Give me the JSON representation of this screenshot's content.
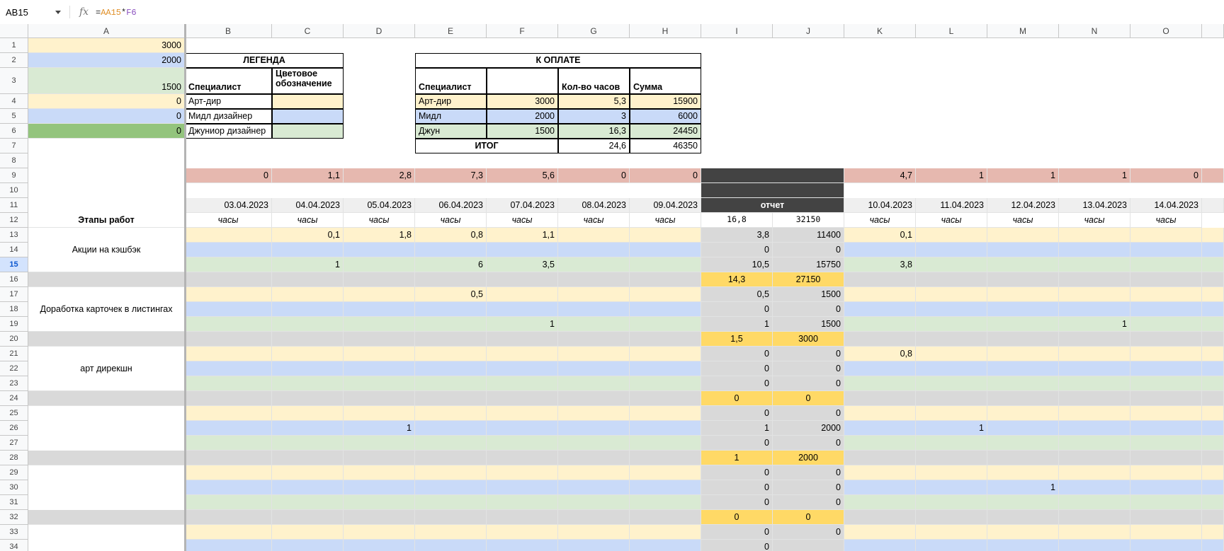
{
  "namebox": "AB15",
  "formula": {
    "eq": "=",
    "ref1": "AA15",
    "op": "*",
    "ref2": "F6"
  },
  "colors": {
    "art": "#fff2cc",
    "mid": "#c9daf8",
    "jun": "#d9ead3",
    "jun_dark": "#93c47d",
    "pink": "#e6b8af",
    "gray": "#d9d9d9",
    "dark": "#434343",
    "orange": "#ffd966",
    "date": "#efefef"
  },
  "columns": [
    "A",
    "B",
    "C",
    "D",
    "E",
    "F",
    "G",
    "H",
    "I",
    "J",
    "K",
    "L",
    "M",
    "N",
    "O"
  ],
  "rows": [
    "1",
    "2",
    "3",
    "4",
    "5",
    "6",
    "7",
    "8",
    "9",
    "10",
    "11",
    "12",
    "13",
    "14",
    "15",
    "16",
    "17",
    "18",
    "19",
    "20",
    "21",
    "22",
    "23",
    "24",
    "25",
    "26",
    "27",
    "28",
    "29",
    "30",
    "31",
    "32",
    "33",
    "34"
  ],
  "selected_row": "15",
  "cells": [
    {
      "id": "A1",
      "t": "3000",
      "bg": "art",
      "al": "r"
    },
    {
      "id": "A2",
      "t": "2000",
      "bg": "mid",
      "al": "r"
    },
    {
      "id": "A3",
      "t": "1500",
      "bg": "jun",
      "al": "r",
      "va": "b"
    },
    {
      "id": "A4",
      "t": "0",
      "bg": "art",
      "al": "r"
    },
    {
      "id": "A5",
      "t": "0",
      "bg": "mid",
      "al": "r"
    },
    {
      "id": "A6",
      "t": "0",
      "bg": "jun_dark",
      "al": "r"
    },
    {
      "id": "B2",
      "t": "ЛЕГЕНДА",
      "span": 2,
      "al": "c",
      "b": 1,
      "box": 1
    },
    {
      "id": "B3",
      "t": "Специалист",
      "b": 1,
      "va": "b",
      "box": 1
    },
    {
      "id": "C3",
      "t": "Цветовое\nобозначение",
      "b": 1,
      "box": 1,
      "wrap": 1
    },
    {
      "id": "B4",
      "t": "Арт-дир",
      "box": 1
    },
    {
      "id": "C4",
      "t": "",
      "bg": "art",
      "box": 1
    },
    {
      "id": "B5",
      "t": "Мидл дизайнер",
      "box": 1
    },
    {
      "id": "C5",
      "t": "",
      "bg": "mid",
      "box": 1
    },
    {
      "id": "B6",
      "t": "Джуниор дизайнер",
      "box": 1
    },
    {
      "id": "C6",
      "t": "",
      "bg": "jun",
      "box": 1
    },
    {
      "id": "E2",
      "t": "К ОПЛАТЕ",
      "span": 4,
      "al": "c",
      "b": 1,
      "box": 1
    },
    {
      "id": "E3",
      "t": "Специалист",
      "b": 1,
      "va": "b",
      "box": 1
    },
    {
      "id": "F3",
      "t": "",
      "box": 1
    },
    {
      "id": "G3",
      "t": "Кол-во часов",
      "b": 1,
      "va": "b",
      "box": 1
    },
    {
      "id": "H3",
      "t": "Сумма",
      "b": 1,
      "va": "b",
      "box": 1
    },
    {
      "id": "E4",
      "t": "Арт-дир",
      "bg": "art",
      "box": 1
    },
    {
      "id": "F4",
      "t": "3000",
      "bg": "art",
      "al": "r",
      "box": 1
    },
    {
      "id": "G4",
      "t": "5,3",
      "bg": "art",
      "al": "r",
      "box": 1
    },
    {
      "id": "H4",
      "t": "15900",
      "bg": "art",
      "al": "r",
      "box": 1
    },
    {
      "id": "E5",
      "t": "Мидл",
      "bg": "mid",
      "box": 1
    },
    {
      "id": "F5",
      "t": "2000",
      "bg": "mid",
      "al": "r",
      "box": 1
    },
    {
      "id": "G5",
      "t": "3",
      "bg": "mid",
      "al": "r",
      "box": 1
    },
    {
      "id": "H5",
      "t": "6000",
      "bg": "mid",
      "al": "r",
      "box": 1
    },
    {
      "id": "E6",
      "t": "Джун",
      "bg": "jun",
      "box": 1
    },
    {
      "id": "F6",
      "t": "1500",
      "bg": "jun",
      "al": "r",
      "box": 1
    },
    {
      "id": "G6",
      "t": "16,3",
      "bg": "jun",
      "al": "r",
      "box": 1
    },
    {
      "id": "H6",
      "t": "24450",
      "bg": "jun",
      "al": "r",
      "box": 1
    },
    {
      "id": "E7",
      "t": "ИТОГ",
      "span": 2,
      "al": "c",
      "b": 1,
      "box": 1
    },
    {
      "id": "G7",
      "t": "24,6",
      "al": "r",
      "box": 1
    },
    {
      "id": "H7",
      "t": "46350",
      "al": "r",
      "box": 1
    },
    {
      "id": "B9",
      "t": "0",
      "bg": "pink",
      "al": "r"
    },
    {
      "id": "C9",
      "t": "1,1",
      "bg": "pink",
      "al": "r"
    },
    {
      "id": "D9",
      "t": "2,8",
      "bg": "pink",
      "al": "r"
    },
    {
      "id": "E9",
      "t": "7,3",
      "bg": "pink",
      "al": "r"
    },
    {
      "id": "F9",
      "t": "5,6",
      "bg": "pink",
      "al": "r"
    },
    {
      "id": "G9",
      "t": "0",
      "bg": "pink",
      "al": "r"
    },
    {
      "id": "H9",
      "t": "0",
      "bg": "pink",
      "al": "r"
    },
    {
      "id": "I9",
      "t": "",
      "bg": "dark",
      "span": 2
    },
    {
      "id": "K9",
      "t": "4,7",
      "bg": "pink",
      "al": "r"
    },
    {
      "id": "L9",
      "t": "1",
      "bg": "pink",
      "al": "r"
    },
    {
      "id": "M9",
      "t": "1",
      "bg": "pink",
      "al": "r"
    },
    {
      "id": "N9",
      "t": "1",
      "bg": "pink",
      "al": "r"
    },
    {
      "id": "O9",
      "t": "0",
      "bg": "pink",
      "al": "r"
    },
    {
      "id": "I10",
      "t": "",
      "bg": "dark",
      "span": 2
    },
    {
      "id": "B11",
      "t": "03.04.2023",
      "bg": "date",
      "al": "r"
    },
    {
      "id": "C11",
      "t": "04.04.2023",
      "bg": "date",
      "al": "r"
    },
    {
      "id": "D11",
      "t": "05.04.2023",
      "bg": "date",
      "al": "r"
    },
    {
      "id": "E11",
      "t": "06.04.2023",
      "bg": "date",
      "al": "r"
    },
    {
      "id": "F11",
      "t": "07.04.2023",
      "bg": "date",
      "al": "r"
    },
    {
      "id": "G11",
      "t": "08.04.2023",
      "bg": "date",
      "al": "r"
    },
    {
      "id": "H11",
      "t": "09.04.2023",
      "bg": "date",
      "al": "r"
    },
    {
      "id": "I11",
      "t": "отчет",
      "bg": "dark",
      "span": 2,
      "al": "c",
      "b": 1,
      "color": "#fff"
    },
    {
      "id": "K11",
      "t": "10.04.2023",
      "bg": "date",
      "al": "r"
    },
    {
      "id": "L11",
      "t": "11.04.2023",
      "bg": "date",
      "al": "r"
    },
    {
      "id": "M11",
      "t": "12.04.2023",
      "bg": "date",
      "al": "r"
    },
    {
      "id": "N11",
      "t": "13.04.2023",
      "bg": "date",
      "al": "r"
    },
    {
      "id": "O11",
      "t": "14.04.2023",
      "bg": "date",
      "al": "r"
    },
    {
      "id": "A12",
      "t": "Этапы работ",
      "al": "c",
      "b": 1
    },
    {
      "id": "B12",
      "t": "часы",
      "al": "c",
      "i": 1
    },
    {
      "id": "C12",
      "t": "часы",
      "al": "c",
      "i": 1
    },
    {
      "id": "D12",
      "t": "часы",
      "al": "c",
      "i": 1
    },
    {
      "id": "E12",
      "t": "часы",
      "al": "c",
      "i": 1
    },
    {
      "id": "F12",
      "t": "часы",
      "al": "c",
      "i": 1
    },
    {
      "id": "G12",
      "t": "часы",
      "al": "c",
      "i": 1
    },
    {
      "id": "H12",
      "t": "часы",
      "al": "c",
      "i": 1
    },
    {
      "id": "I12",
      "t": "16,8",
      "al": "c",
      "mono": 1
    },
    {
      "id": "J12",
      "t": "32150",
      "al": "c",
      "mono": 1
    },
    {
      "id": "K12",
      "t": "часы",
      "al": "c",
      "i": 1
    },
    {
      "id": "L12",
      "t": "часы",
      "al": "c",
      "i": 1
    },
    {
      "id": "M12",
      "t": "часы",
      "al": "c",
      "i": 1
    },
    {
      "id": "N12",
      "t": "часы",
      "al": "c",
      "i": 1
    },
    {
      "id": "O12",
      "t": "часы",
      "al": "c",
      "i": 1
    },
    {
      "id": "A13",
      "t": "Акции на кэшбэк",
      "rspan": 3,
      "al": "c"
    },
    {
      "id": "C13",
      "t": "0,1",
      "al": "r"
    },
    {
      "id": "D13",
      "t": "1,8",
      "al": "r"
    },
    {
      "id": "E13",
      "t": "0,8",
      "al": "r"
    },
    {
      "id": "F13",
      "t": "1,1",
      "al": "r"
    },
    {
      "id": "I13",
      "t": "3,8",
      "al": "r"
    },
    {
      "id": "J13",
      "t": "11400",
      "al": "r"
    },
    {
      "id": "K13",
      "t": "0,1",
      "al": "r"
    },
    {
      "id": "I14",
      "t": "0",
      "al": "r"
    },
    {
      "id": "J14",
      "t": "0",
      "al": "r"
    },
    {
      "id": "C15",
      "t": "1",
      "al": "r"
    },
    {
      "id": "E15",
      "t": "6",
      "al": "r"
    },
    {
      "id": "F15",
      "t": "3,5",
      "al": "r"
    },
    {
      "id": "I15",
      "t": "10,5",
      "al": "r"
    },
    {
      "id": "J15",
      "t": "15750",
      "al": "r"
    },
    {
      "id": "K15",
      "t": "3,8",
      "al": "r"
    },
    {
      "id": "I16",
      "t": "14,3",
      "al": "c",
      "bg": "orange"
    },
    {
      "id": "J16",
      "t": "27150",
      "al": "c",
      "bg": "orange"
    },
    {
      "id": "A17",
      "t": "Доработка карточек в листингах",
      "rspan": 3,
      "al": "c"
    },
    {
      "id": "E17",
      "t": "0,5",
      "al": "r"
    },
    {
      "id": "I17",
      "t": "0,5",
      "al": "r"
    },
    {
      "id": "J17",
      "t": "1500",
      "al": "r"
    },
    {
      "id": "I18",
      "t": "0",
      "al": "r"
    },
    {
      "id": "J18",
      "t": "0",
      "al": "r"
    },
    {
      "id": "F19",
      "t": "1",
      "al": "r"
    },
    {
      "id": "I19",
      "t": "1",
      "al": "r"
    },
    {
      "id": "J19",
      "t": "1500",
      "al": "r"
    },
    {
      "id": "N19",
      "t": "1",
      "al": "r"
    },
    {
      "id": "I20",
      "t": "1,5",
      "al": "c",
      "bg": "orange"
    },
    {
      "id": "J20",
      "t": "3000",
      "al": "c",
      "bg": "orange"
    },
    {
      "id": "A21",
      "t": "арт дирекшн",
      "rspan": 3,
      "al": "c"
    },
    {
      "id": "I21",
      "t": "0",
      "al": "r"
    },
    {
      "id": "J21",
      "t": "0",
      "al": "r"
    },
    {
      "id": "K21",
      "t": "0,8",
      "al": "r"
    },
    {
      "id": "I22",
      "t": "0",
      "al": "r"
    },
    {
      "id": "J22",
      "t": "0",
      "al": "r"
    },
    {
      "id": "I23",
      "t": "0",
      "al": "r"
    },
    {
      "id": "J23",
      "t": "0",
      "al": "r"
    },
    {
      "id": "I24",
      "t": "0",
      "al": "c",
      "bg": "orange"
    },
    {
      "id": "J24",
      "t": "0",
      "al": "c",
      "bg": "orange"
    },
    {
      "id": "I25",
      "t": "0",
      "al": "r"
    },
    {
      "id": "J25",
      "t": "0",
      "al": "r"
    },
    {
      "id": "D26",
      "t": "1",
      "al": "r"
    },
    {
      "id": "I26",
      "t": "1",
      "al": "r"
    },
    {
      "id": "J26",
      "t": "2000",
      "al": "r"
    },
    {
      "id": "L26",
      "t": "1",
      "al": "r"
    },
    {
      "id": "I27",
      "t": "0",
      "al": "r"
    },
    {
      "id": "J27",
      "t": "0",
      "al": "r"
    },
    {
      "id": "I28",
      "t": "1",
      "al": "c",
      "bg": "orange"
    },
    {
      "id": "J28",
      "t": "2000",
      "al": "c",
      "bg": "orange"
    },
    {
      "id": "I29",
      "t": "0",
      "al": "r"
    },
    {
      "id": "J29",
      "t": "0",
      "al": "r"
    },
    {
      "id": "I30",
      "t": "0",
      "al": "r"
    },
    {
      "id": "J30",
      "t": "0",
      "al": "r"
    },
    {
      "id": "M30",
      "t": "1",
      "al": "r"
    },
    {
      "id": "I31",
      "t": "0",
      "al": "r"
    },
    {
      "id": "J31",
      "t": "0",
      "al": "r"
    },
    {
      "id": "I32",
      "t": "0",
      "al": "c",
      "bg": "orange"
    },
    {
      "id": "J32",
      "t": "0",
      "al": "c",
      "bg": "orange"
    },
    {
      "id": "I33",
      "t": "0",
      "al": "r"
    },
    {
      "id": "J33",
      "t": "0",
      "al": "r"
    },
    {
      "id": "I34",
      "t": "0",
      "al": "r"
    }
  ]
}
